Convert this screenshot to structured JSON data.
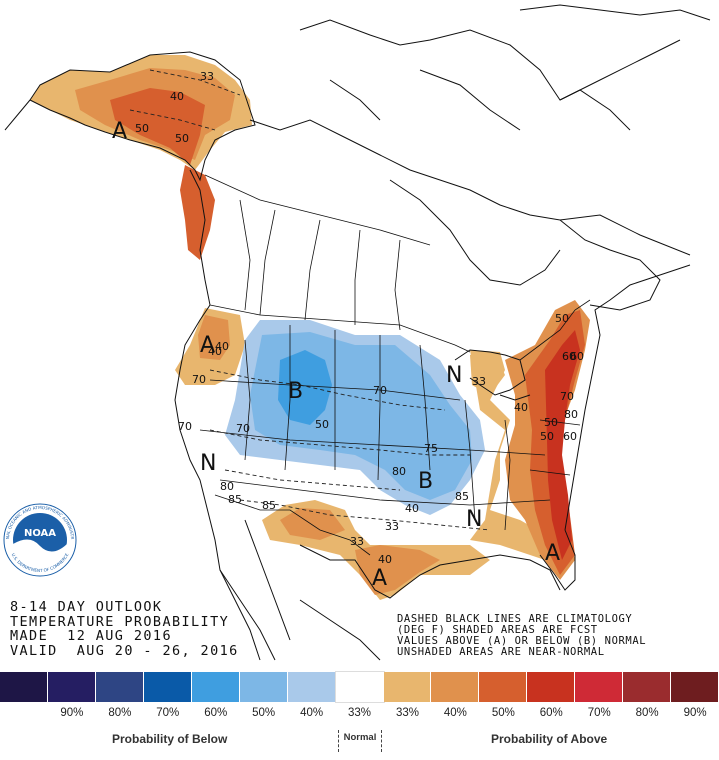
{
  "title_lines": [
    "8-14 DAY OUTLOOK",
    "TEMPERATURE PROBABILITY",
    "MADE  12 AUG 2016",
    "VALID  AUG 20 - 26, 2016"
  ],
  "info_lines": [
    "DASHED BLACK LINES ARE CLIMATOLOGY",
    "(DEG F) SHADED AREAS ARE FCST",
    "VALUES ABOVE (A) OR BELOW (B) NORMAL",
    "UNSHADED AREAS ARE NEAR-NORMAL"
  ],
  "logo": {
    "text": "NOAA",
    "ring_text": "NATIONAL OCEANIC AND ATMOSPHERIC ADMINISTRATION",
    "bottom_text": "U.S. DEPARTMENT OF COMMERCE",
    "color": "#1b5fa8"
  },
  "colors": {
    "below_50": "#3f9ee0",
    "below_40": "#7db7e6",
    "below_33": "#a9c9ea",
    "above_33": "#e8b66e",
    "above_40": "#e0914d",
    "above_50": "#d65f2e",
    "above_60": "#c8321f",
    "land": "#ffffff",
    "outline": "#111111"
  },
  "map_labels": {
    "big_letters": [
      {
        "text": "A",
        "region": "alaska"
      },
      {
        "text": "A",
        "region": "pacific-northwest"
      },
      {
        "text": "B",
        "region": "northern-rockies"
      },
      {
        "text": "N",
        "region": "southwest"
      },
      {
        "text": "B",
        "region": "central-plains"
      },
      {
        "text": "N",
        "region": "great-lakes"
      },
      {
        "text": "N",
        "region": "southeast"
      },
      {
        "text": "A",
        "region": "texas-gulf"
      },
      {
        "text": "A",
        "region": "east-coast"
      }
    ],
    "contour_values": [
      "33",
      "40",
      "50",
      "40",
      "50",
      "70",
      "50",
      "40",
      "70",
      "70",
      "50",
      "33",
      "75",
      "80",
      "40",
      "33",
      "40",
      "33",
      "40",
      "50",
      "60",
      "50",
      "60",
      "60",
      "70",
      "85",
      "80",
      "85",
      "85",
      "70",
      "80"
    ]
  },
  "legend": {
    "colors": [
      "#1e1646",
      "#251e62",
      "#2e4584",
      "#0a5aa8",
      "#3f9ee0",
      "#7db7e6",
      "#a9c9ea",
      "#ffffff",
      "#e8b66e",
      "#e0914d",
      "#d65f2e",
      "#c8321f",
      "#cf2a36",
      "#9a2c2e",
      "#6e1d1f"
    ],
    "percent_labels": [
      "",
      "90%",
      "80%",
      "70%",
      "60%",
      "50%",
      "40%",
      "33%",
      "33%",
      "40%",
      "50%",
      "60%",
      "70%",
      "80%",
      "90%"
    ],
    "below_caption": "Probability of Below",
    "normal_caption": "Normal",
    "above_caption": "Probability of Above"
  }
}
